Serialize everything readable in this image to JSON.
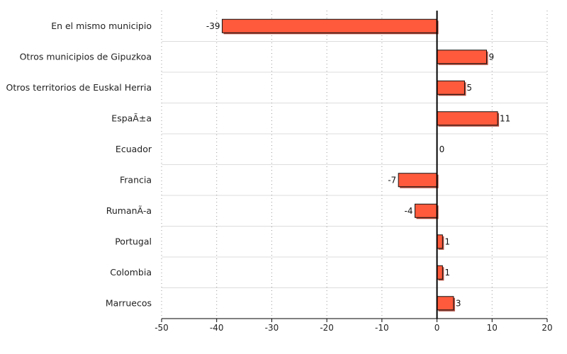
{
  "chart_data": {
    "type": "bar",
    "orientation": "horizontal",
    "categories": [
      "En el mismo municipio",
      "Otros municipios de Gipuzkoa",
      "Otros territorios de Euskal Herria",
      "EspaÃ±a",
      "Ecuador",
      "Francia",
      "RumanÃ-a",
      "Portugal",
      "Colombia",
      "Marruecos"
    ],
    "values": [
      -39,
      9,
      5,
      11,
      0,
      -7,
      -4,
      1,
      1,
      3
    ],
    "data_labels": [
      "-39",
      "9",
      "5",
      "11",
      "0",
      "-7",
      "-4",
      "1",
      "1",
      "3"
    ],
    "xlim": [
      -50,
      20
    ],
    "xticks": [
      -50,
      -40,
      -30,
      -20,
      -10,
      0,
      10,
      20
    ],
    "xtick_labels": [
      "-50",
      "-40",
      "-30",
      "-20",
      "-10",
      "0",
      "10",
      "20"
    ],
    "grid": {
      "vertical": true,
      "horizontal": true
    },
    "title": "",
    "xlabel": "",
    "ylabel": "",
    "colors": {
      "bar": "#ff5a3c",
      "bar_border": "#111111",
      "bar_shadow": "#b04a3a",
      "zero_line": "#000000",
      "grid": "#999999"
    }
  }
}
